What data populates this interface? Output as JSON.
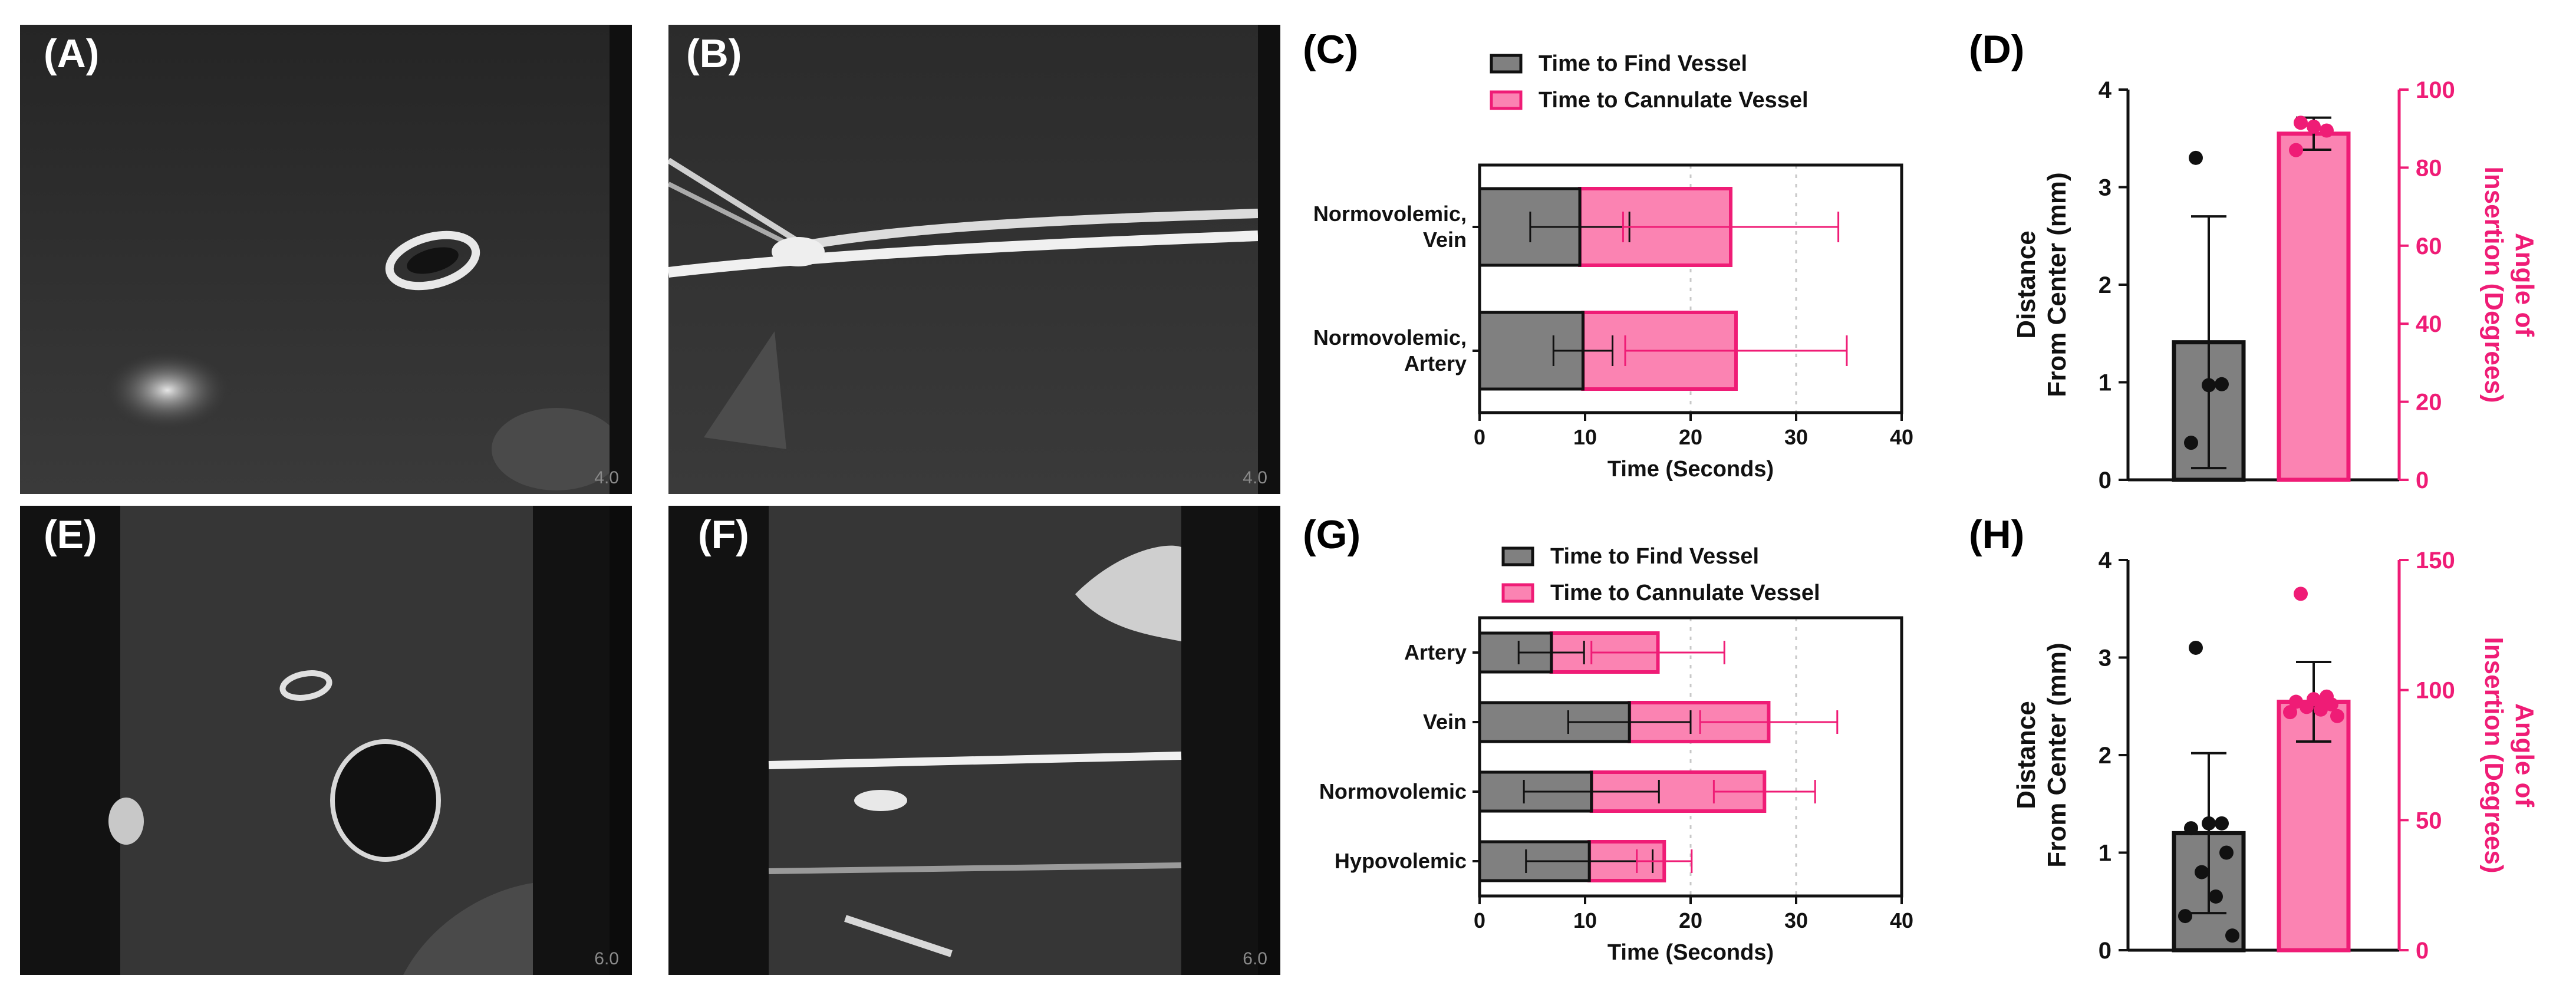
{
  "colors": {
    "find": "#808080",
    "cannulate": "#fb83b2",
    "pink_edge": "#ef1c76",
    "axis": "#111111",
    "grid": "#c8c8c8"
  },
  "ultrasound": [
    {
      "label": "(A)",
      "depth": "4.0"
    },
    {
      "label": "(B)",
      "depth": "4.0"
    },
    {
      "label": "(E)",
      "depth": "6.0"
    },
    {
      "label": "(F)",
      "depth": "6.0"
    }
  ],
  "chart_data": [
    {
      "id": "C",
      "panel_label": "(C)",
      "type": "bar",
      "orientation": "horizontal",
      "stacked": true,
      "categories": [
        "Normovolemic,\nVein",
        "Normovolemic,\nArtery"
      ],
      "series": [
        {
          "name": "Time to Find Vessel",
          "values": [
            9.5,
            9.8
          ],
          "error": [
            4.7,
            2.8
          ]
        },
        {
          "name": "Time to Cannulate Vessel",
          "values": [
            14.3,
            14.5
          ],
          "error": [
            10.2,
            10.5
          ]
        }
      ],
      "xlabel": "Time (Seconds)",
      "xlim": [
        0,
        40
      ],
      "xticks": [
        0,
        10,
        20,
        30,
        40
      ],
      "grid": "vertical dotted at 20 and 30",
      "legend": "top"
    },
    {
      "id": "D",
      "panel_label": "(D)",
      "type": "bar",
      "dual_axis": true,
      "series": [
        {
          "name": "Distance From Center (mm)",
          "axis": "left",
          "mean": 1.41,
          "sd": 1.29,
          "points": [
            3.3,
            0.98,
            0.97,
            0.38
          ]
        },
        {
          "name": "Angle of Insertion (Degrees)",
          "axis": "right",
          "mean": 88.7,
          "sd": 4.1,
          "points": [
            91.5,
            89.5,
            90.5,
            84.5
          ]
        }
      ],
      "ylabel_left": "Distance\nFrom Center (mm)",
      "ylabel_right": "Angle of\nInsertion (Degrees)",
      "ylim_left": [
        0,
        4
      ],
      "yticks_left": [
        0,
        1,
        2,
        3,
        4
      ],
      "ylim_right": [
        0,
        100
      ],
      "yticks_right": [
        0,
        20,
        40,
        60,
        80,
        100
      ]
    },
    {
      "id": "G",
      "panel_label": "(G)",
      "type": "bar",
      "orientation": "horizontal",
      "stacked": true,
      "categories": [
        "Artery",
        "Vein",
        "Normovolemic",
        "Hypovolemic"
      ],
      "series": [
        {
          "name": "Time to Find Vessel",
          "values": [
            6.8,
            14.2,
            10.6,
            10.4
          ],
          "error": [
            3.1,
            5.8,
            6.4,
            6.0
          ]
        },
        {
          "name": "Time to Cannulate Vessel",
          "values": [
            10.1,
            13.2,
            16.4,
            7.1
          ],
          "error": [
            6.3,
            6.5,
            4.8,
            2.6
          ]
        }
      ],
      "xlabel": "Time (Seconds)",
      "xlim": [
        0,
        40
      ],
      "xticks": [
        0,
        10,
        20,
        30,
        40
      ],
      "grid": "vertical dotted at 20 and 30",
      "legend": "top"
    },
    {
      "id": "H",
      "panel_label": "(H)",
      "type": "bar",
      "dual_axis": true,
      "series": [
        {
          "name": "Distance From Center (mm)",
          "axis": "left",
          "mean": 1.2,
          "sd": 0.82,
          "points": [
            3.1,
            1.3,
            1.3,
            1.25,
            1.0,
            0.8,
            0.55,
            0.35,
            0.15
          ]
        },
        {
          "name": "Angle of Insertion (Degrees)",
          "axis": "right",
          "mean": 95.5,
          "sd": 15.3,
          "points": [
            137,
            97.5,
            96.5,
            95.5,
            94.5,
            93.5,
            92.5,
            91.5,
            90
          ]
        }
      ],
      "ylabel_left": "Distance\nFrom Center (mm)",
      "ylabel_right": "Angle of\nInsertion (Degrees)",
      "ylim_left": [
        0,
        4
      ],
      "yticks_left": [
        0,
        1,
        2,
        3,
        4
      ],
      "ylim_right": [
        0,
        150
      ],
      "yticks_right": [
        0,
        50,
        100,
        150
      ]
    }
  ]
}
